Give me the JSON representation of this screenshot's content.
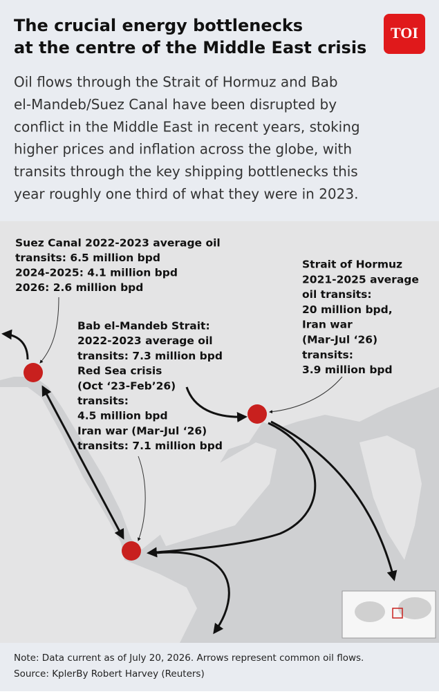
{
  "header": {
    "title_lines": [
      "The crucial energy bottlenecks",
      "at the centre of the Middle East crisis"
    ],
    "logo": "TOI",
    "intro_lines": [
      "Oil flows through the Strait of Hormuz and Bab",
      "el-Mandeb/Suez Canal have been disrupted by",
      "conflict in the Middle East in recent years, stoking",
      "higher prices and inflation across the globe, with",
      "transits through the key shipping bottlenecks this",
      "year roughly one third of what they were in 2023."
    ]
  },
  "callouts": [
    {
      "lines": [
        "Suez Canal 2022-2023 average oil",
        "transits: 6.5 million bpd",
        "2024-2025: 4.1 million bpd",
        "2026: 2.6 million bpd"
      ]
    },
    {
      "lines": [
        "Bab el-Mandeb Strait:",
        "2022-2023 average oil",
        "transits: 7.3 million bpd",
        "Red Sea crisis",
        "(Oct ‘23-Feb’26)",
        "transits:",
        "4.5 million bpd",
        "Iran war (Mar-Jul ‘26)",
        "transits: 7.1 million bpd"
      ]
    },
    {
      "lines": [
        "Strait of Hormuz",
        "2021-2025 average",
        "oil transits:",
        "20 million bpd,",
        "Iran war",
        "(Mar-Jul ‘26)",
        "transits:",
        "3.9 million bpd"
      ]
    }
  ],
  "footer": {
    "note": "Note: Data current as of July 20, 2026. Arrows represent common oil flows.",
    "source": "Source: KplerBy Robert Harvey (Reuters)"
  }
}
